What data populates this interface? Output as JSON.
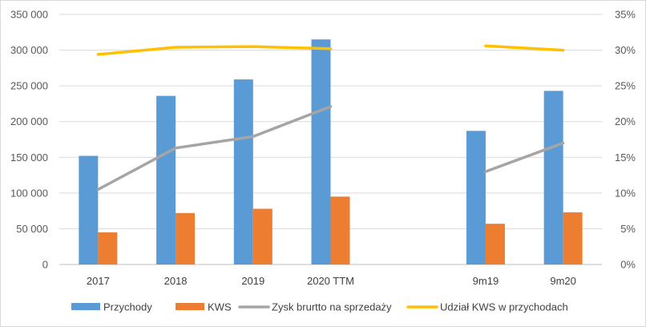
{
  "chart_data": {
    "type": "bar",
    "categories": [
      "2017",
      "2018",
      "2019",
      "2020 TTM",
      "",
      "9m19",
      "9m20"
    ],
    "y_left": {
      "range": [
        0,
        350000
      ],
      "ticks": [
        0,
        50000,
        100000,
        150000,
        200000,
        250000,
        300000,
        350000
      ],
      "tick_labels": [
        "0",
        "50 000",
        "100 000",
        "150 000",
        "200 000",
        "250 000",
        "300 000",
        "350 000"
      ]
    },
    "y_right": {
      "range": [
        0,
        0.35
      ],
      "ticks": [
        0,
        0.05,
        0.1,
        0.15,
        0.2,
        0.25,
        0.3,
        0.35
      ],
      "tick_labels": [
        "0%",
        "5%",
        "10%",
        "15%",
        "20%",
        "25%",
        "30%",
        "35%"
      ]
    },
    "grid": true,
    "legend_position": "bottom",
    "series": [
      {
        "name": "Przychody",
        "type": "bar",
        "axis": "left",
        "color": "#5B9BD5",
        "values": [
          152000,
          236000,
          259000,
          315000,
          null,
          187000,
          243000
        ]
      },
      {
        "name": "KWS",
        "type": "bar",
        "axis": "left",
        "color": "#ED7D31",
        "values": [
          45000,
          72000,
          78000,
          95000,
          null,
          57000,
          73000
        ]
      },
      {
        "name": "Zysk brurtto na sprzedaży",
        "type": "line",
        "axis": "right",
        "color": "#A5A5A5",
        "values": [
          0.105,
          0.163,
          0.179,
          0.221,
          null,
          0.13,
          0.17
        ]
      },
      {
        "name": "Udział KWS w przychodach",
        "type": "line",
        "axis": "right",
        "color": "#FFC000",
        "values": [
          0.294,
          0.304,
          0.305,
          0.302,
          null,
          0.306,
          0.3
        ]
      }
    ]
  }
}
